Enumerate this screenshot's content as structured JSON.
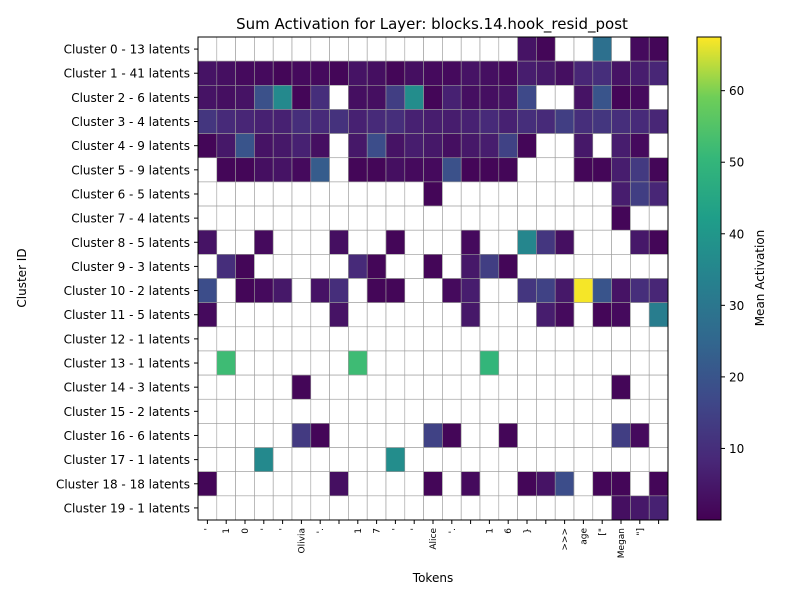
{
  "chart_data": {
    "type": "heatmap",
    "title": "Sum Activation for Layer: blocks.14.hook_resid_post",
    "xlabel": "Tokens",
    "ylabel": "Cluster ID",
    "colorbar_label": "Mean Activation",
    "colormap": "viridis",
    "vmin": 0,
    "vmax": 67.5,
    "colorbar_ticks": [
      10,
      20,
      30,
      40,
      50,
      60
    ],
    "empty_color": "#ffffff",
    "grid_color": "#999999",
    "rows": [
      "Cluster 0 - 13 latents",
      "Cluster 1 - 41 latents",
      "Cluster 2 - 6 latents",
      "Cluster 3 - 4 latents",
      "Cluster 4 - 9 latents",
      "Cluster 5 - 9 latents",
      "Cluster 6 - 5 latents",
      "Cluster 7 - 4 latents",
      "Cluster 8 - 5 latents",
      "Cluster 9 - 3 latents",
      "Cluster 10 - 2 latents",
      "Cluster 11 - 5 latents",
      "Cluster 12 - 1 latents",
      "Cluster 13 - 1 latents",
      "Cluster 14 - 3 latents",
      "Cluster 15 - 2 latents",
      "Cluster 16 - 6 latents",
      "Cluster 17 - 1 latents",
      "Cluster 18 - 18 latents",
      "Cluster 19 - 1 latents"
    ],
    "columns": [
      "'",
      "1",
      "0",
      "'",
      "'",
      "Olivia",
      "'.",
      "",
      "1",
      "7",
      "'",
      "'",
      "Alice",
      "'.",
      "",
      "1",
      "6",
      "}",
      "",
      ">>>",
      "age",
      "[\"",
      "Megan",
      "\"]",
      ""
    ],
    "values": [
      [
        null,
        null,
        null,
        null,
        null,
        null,
        null,
        null,
        null,
        null,
        null,
        null,
        null,
        null,
        null,
        null,
        null,
        4,
        1,
        null,
        null,
        28,
        null,
        2,
        1
      ],
      [
        4,
        3,
        2,
        2,
        1,
        2,
        2,
        1,
        4,
        3,
        1,
        3,
        2,
        2,
        4,
        3,
        2,
        6,
        5,
        3,
        8,
        10,
        4,
        6,
        8
      ],
      [
        4,
        3,
        4,
        19,
        36,
        1,
        10,
        null,
        3,
        3,
        14,
        37,
        1,
        7,
        3,
        3,
        4,
        17,
        null,
        null,
        4,
        20,
        1,
        2,
        null
      ],
      [
        12,
        9,
        8,
        7,
        7,
        10,
        9,
        11,
        7,
        9,
        10,
        7,
        6,
        6,
        7,
        9,
        7,
        10,
        9,
        14,
        10,
        12,
        10,
        9,
        8
      ],
      [
        1,
        5,
        20,
        4,
        5,
        7,
        3,
        null,
        5,
        18,
        4,
        6,
        5,
        3,
        5,
        6,
        15,
        1,
        null,
        null,
        5,
        null,
        6,
        2,
        null
      ],
      [
        null,
        1,
        1,
        3,
        4,
        2,
        22,
        null,
        1,
        1,
        3,
        2,
        2,
        19,
        1,
        1,
        1,
        null,
        null,
        null,
        1,
        1,
        6,
        13,
        1
      ],
      [
        null,
        null,
        null,
        null,
        null,
        null,
        null,
        null,
        null,
        null,
        null,
        null,
        1,
        null,
        null,
        null,
        null,
        null,
        null,
        null,
        null,
        null,
        6,
        14,
        8
      ],
      [
        null,
        null,
        null,
        null,
        null,
        null,
        null,
        null,
        null,
        null,
        null,
        null,
        null,
        null,
        null,
        null,
        null,
        null,
        null,
        null,
        null,
        null,
        1,
        null,
        null
      ],
      [
        4,
        null,
        null,
        2,
        null,
        null,
        null,
        3,
        null,
        null,
        1,
        null,
        null,
        null,
        2,
        null,
        null,
        35,
        12,
        3,
        null,
        null,
        null,
        5,
        1
      ],
      [
        null,
        10,
        1,
        null,
        null,
        null,
        null,
        null,
        9,
        1,
        null,
        null,
        1,
        null,
        5,
        14,
        1,
        null,
        null,
        null,
        null,
        null,
        null,
        null,
        null
      ],
      [
        18,
        null,
        1,
        2,
        5,
        null,
        4,
        10,
        null,
        1,
        1,
        null,
        null,
        2,
        6,
        null,
        null,
        12,
        15,
        5,
        67,
        20,
        4,
        10,
        8
      ],
      [
        2,
        null,
        null,
        null,
        null,
        null,
        null,
        4,
        null,
        null,
        null,
        null,
        null,
        null,
        5,
        null,
        null,
        null,
        6,
        2,
        null,
        1,
        2,
        null,
        32
      ],
      [
        null,
        null,
        null,
        null,
        null,
        null,
        null,
        null,
        null,
        null,
        null,
        null,
        null,
        null,
        null,
        null,
        null,
        null,
        null,
        null,
        null,
        null,
        null,
        null,
        null
      ],
      [
        null,
        52,
        null,
        null,
        null,
        null,
        null,
        null,
        52,
        null,
        null,
        null,
        null,
        null,
        null,
        50,
        null,
        null,
        null,
        null,
        null,
        null,
        null,
        null,
        null
      ],
      [
        null,
        null,
        null,
        null,
        null,
        1,
        null,
        null,
        null,
        null,
        null,
        null,
        null,
        null,
        null,
        null,
        null,
        null,
        null,
        null,
        null,
        null,
        1,
        null,
        null
      ],
      [
        null,
        null,
        null,
        null,
        null,
        null,
        null,
        null,
        null,
        null,
        null,
        null,
        null,
        null,
        null,
        null,
        null,
        null,
        null,
        null,
        null,
        null,
        null,
        null,
        null
      ],
      [
        null,
        null,
        null,
        null,
        null,
        13,
        1,
        null,
        null,
        null,
        null,
        null,
        15,
        1,
        null,
        null,
        1,
        null,
        null,
        null,
        null,
        null,
        14,
        2,
        null
      ],
      [
        null,
        null,
        null,
        36,
        null,
        null,
        null,
        null,
        null,
        null,
        37,
        null,
        null,
        null,
        null,
        null,
        null,
        null,
        null,
        null,
        null,
        null,
        null,
        null,
        null
      ],
      [
        1,
        null,
        null,
        null,
        null,
        null,
        null,
        3,
        null,
        null,
        null,
        null,
        1,
        null,
        2,
        null,
        null,
        1,
        4,
        18,
        null,
        1,
        1,
        null,
        1
      ],
      [
        null,
        null,
        null,
        null,
        null,
        null,
        null,
        null,
        null,
        null,
        null,
        null,
        null,
        null,
        null,
        null,
        null,
        null,
        null,
        null,
        null,
        null,
        3,
        5,
        7
      ]
    ]
  }
}
